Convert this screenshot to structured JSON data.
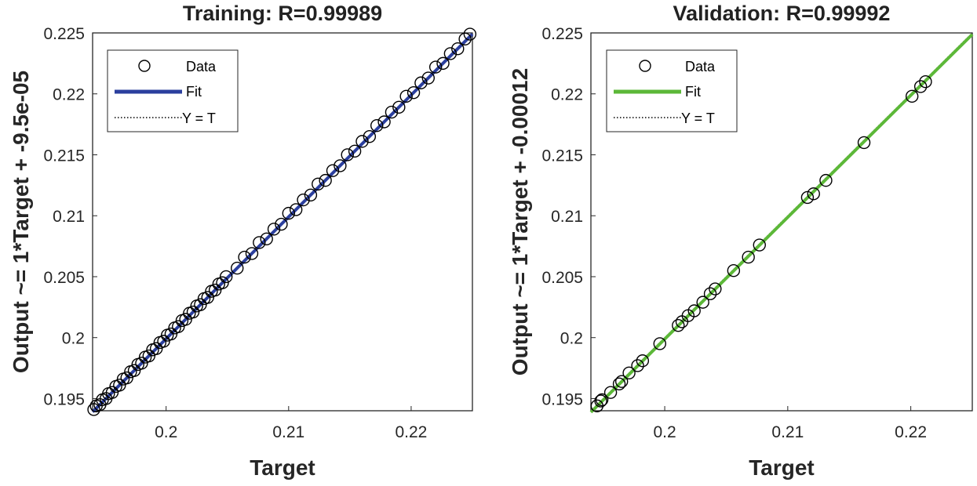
{
  "chart_data": [
    {
      "type": "scatter",
      "title": "Training: R=0.99989",
      "xlabel": "Target",
      "ylabel": "Output ~= 1*Target + -9.5e-05",
      "xlim": [
        0.194,
        0.225
      ],
      "ylim": [
        0.194,
        0.225
      ],
      "xticks": [
        0.2,
        0.21,
        0.22
      ],
      "xtick_labels": [
        "0.2",
        "0.21",
        "0.22"
      ],
      "yticks": [
        0.195,
        0.2,
        0.205,
        0.21,
        0.215,
        0.22,
        0.225
      ],
      "ytick_labels": [
        "0.195",
        "0.2",
        "0.205",
        "0.21",
        "0.215",
        "0.22",
        "0.225"
      ],
      "fit": {
        "slope": 1,
        "intercept": -9.5e-05,
        "color": "#2b3f9e"
      },
      "marker_color": "#000000",
      "legend": {
        "position": "top-left",
        "entries": [
          "Data",
          "Fit",
          "Y = T"
        ]
      },
      "grid": false,
      "series": [
        {
          "name": "Data",
          "x": [
            0.1941,
            0.1943,
            0.1946,
            0.1948,
            0.1951,
            0.1953,
            0.1956,
            0.1959,
            0.1962,
            0.1965,
            0.1968,
            0.1971,
            0.1974,
            0.1977,
            0.198,
            0.1983,
            0.1986,
            0.1989,
            0.1992,
            0.1995,
            0.1998,
            0.2001,
            0.2004,
            0.2007,
            0.201,
            0.2013,
            0.2016,
            0.2019,
            0.2022,
            0.2025,
            0.2028,
            0.2031,
            0.2034,
            0.2037,
            0.204,
            0.2043,
            0.2046,
            0.2049,
            0.2058,
            0.2064,
            0.207,
            0.2076,
            0.2082,
            0.2088,
            0.2094,
            0.21,
            0.2106,
            0.2112,
            0.2118,
            0.2124,
            0.213,
            0.2136,
            0.2142,
            0.2148,
            0.2154,
            0.216,
            0.2166,
            0.2172,
            0.2178,
            0.2184,
            0.219,
            0.2196,
            0.2202,
            0.2208,
            0.2214,
            0.222,
            0.2226,
            0.2232,
            0.2238,
            0.2244,
            0.2248
          ],
          "y": [
            0.1941,
            0.1944,
            0.1945,
            0.1949,
            0.195,
            0.1954,
            0.1955,
            0.196,
            0.1961,
            0.1966,
            0.1967,
            0.1972,
            0.1973,
            0.1978,
            0.1979,
            0.1984,
            0.1985,
            0.199,
            0.1991,
            0.1996,
            0.1997,
            0.2002,
            0.2003,
            0.2008,
            0.2009,
            0.2014,
            0.2015,
            0.202,
            0.2021,
            0.2026,
            0.2027,
            0.2032,
            0.2033,
            0.2038,
            0.2039,
            0.2044,
            0.2045,
            0.205,
            0.2057,
            0.2066,
            0.2069,
            0.2078,
            0.2081,
            0.2089,
            0.2093,
            0.2102,
            0.2105,
            0.2113,
            0.2117,
            0.2126,
            0.2129,
            0.2137,
            0.2141,
            0.215,
            0.2153,
            0.2161,
            0.2165,
            0.2174,
            0.2177,
            0.2185,
            0.2189,
            0.2198,
            0.2201,
            0.2209,
            0.2213,
            0.2222,
            0.2225,
            0.2233,
            0.2237,
            0.2245,
            0.2249
          ]
        }
      ]
    },
    {
      "type": "scatter",
      "title": "Validation: R=0.99992",
      "xlabel": "Target",
      "ylabel": "Output ~= 1*Target + -0.00012",
      "xlim": [
        0.194,
        0.225
      ],
      "ylim": [
        0.194,
        0.225
      ],
      "xticks": [
        0.2,
        0.21,
        0.22
      ],
      "xtick_labels": [
        "0.2",
        "0.21",
        "0.22"
      ],
      "yticks": [
        0.195,
        0.2,
        0.205,
        0.21,
        0.215,
        0.22,
        0.225
      ],
      "ytick_labels": [
        "0.195",
        "0.2",
        "0.205",
        "0.21",
        "0.215",
        "0.22",
        "0.225"
      ],
      "fit": {
        "slope": 1,
        "intercept": -0.00012,
        "color": "#5cb838"
      },
      "marker_color": "#000000",
      "legend": {
        "position": "top-left",
        "entries": [
          "Data",
          "Fit",
          "Y = T"
        ]
      },
      "grid": false,
      "series": [
        {
          "name": "Data",
          "x": [
            0.1945,
            0.1948,
            0.1949,
            0.1956,
            0.1963,
            0.1965,
            0.1971,
            0.1978,
            0.1982,
            0.1996,
            0.2011,
            0.2014,
            0.2019,
            0.2024,
            0.2031,
            0.2037,
            0.2041,
            0.2056,
            0.2068,
            0.2077,
            0.2116,
            0.2121,
            0.2131,
            0.2162,
            0.2201,
            0.2208,
            0.2212
          ],
          "y": [
            0.1944,
            0.1948,
            0.1949,
            0.1955,
            0.1962,
            0.1964,
            0.1971,
            0.1977,
            0.1981,
            0.1995,
            0.201,
            0.2013,
            0.2018,
            0.2022,
            0.2029,
            0.2036,
            0.204,
            0.2055,
            0.2066,
            0.2076,
            0.2115,
            0.2118,
            0.2129,
            0.216,
            0.2198,
            0.2206,
            0.221
          ]
        }
      ]
    }
  ]
}
